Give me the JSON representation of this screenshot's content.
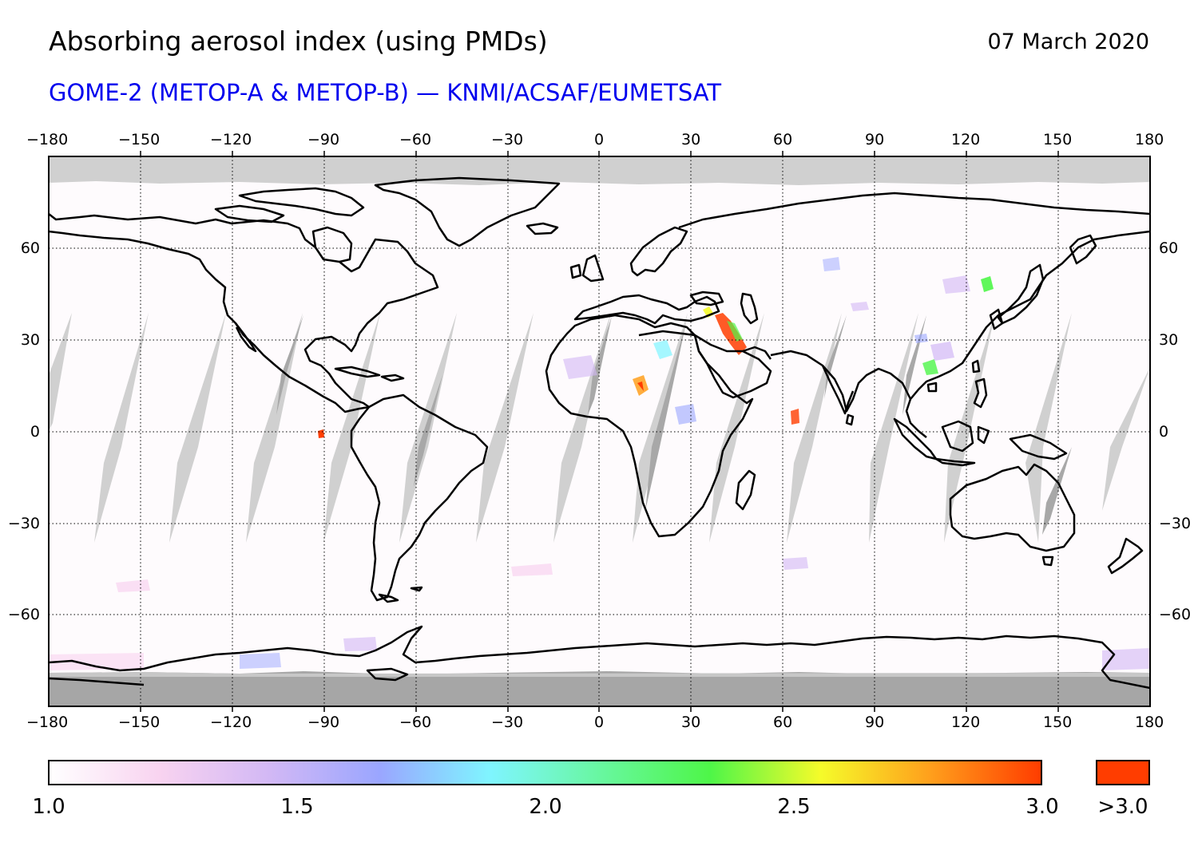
{
  "header": {
    "title": "Absorbing aerosol index (using PMDs)",
    "date": "07 March 2020",
    "subtitle": "GOME-2 (METOP-A & METOP-B) — KNMI/ACSAF/EUMETSAT"
  },
  "map": {
    "projection": "equirectangular",
    "lon_range": [
      -180,
      180
    ],
    "lat_range": [
      -90,
      90
    ],
    "lon_ticks": [
      "−180",
      "−150",
      "−120",
      "−90",
      "−60",
      "−30",
      "0",
      "30",
      "60",
      "90",
      "120",
      "150",
      "180"
    ],
    "lat_ticks": [
      "60",
      "30",
      "0",
      "−30",
      "−60"
    ],
    "grid": "dotted",
    "no_data_color": "#d0d0d0",
    "polar_night_color": "#a6a6a6",
    "coastline_color": "#000000"
  },
  "colorbar": {
    "min_label": "1.0",
    "labels": [
      "1.0",
      "1.5",
      "2.0",
      "2.5",
      "3.0"
    ],
    "overflow_label": ">3.0",
    "overflow_color": "#ff3d00",
    "gradient_colors": [
      "#ffffff",
      "#f8d3f0",
      "#d2b8f5",
      "#9aa6ff",
      "#7ff5ff",
      "#68f7a0",
      "#4ef648",
      "#f5fb2a",
      "#ff9f1c",
      "#ff3d00"
    ]
  }
}
